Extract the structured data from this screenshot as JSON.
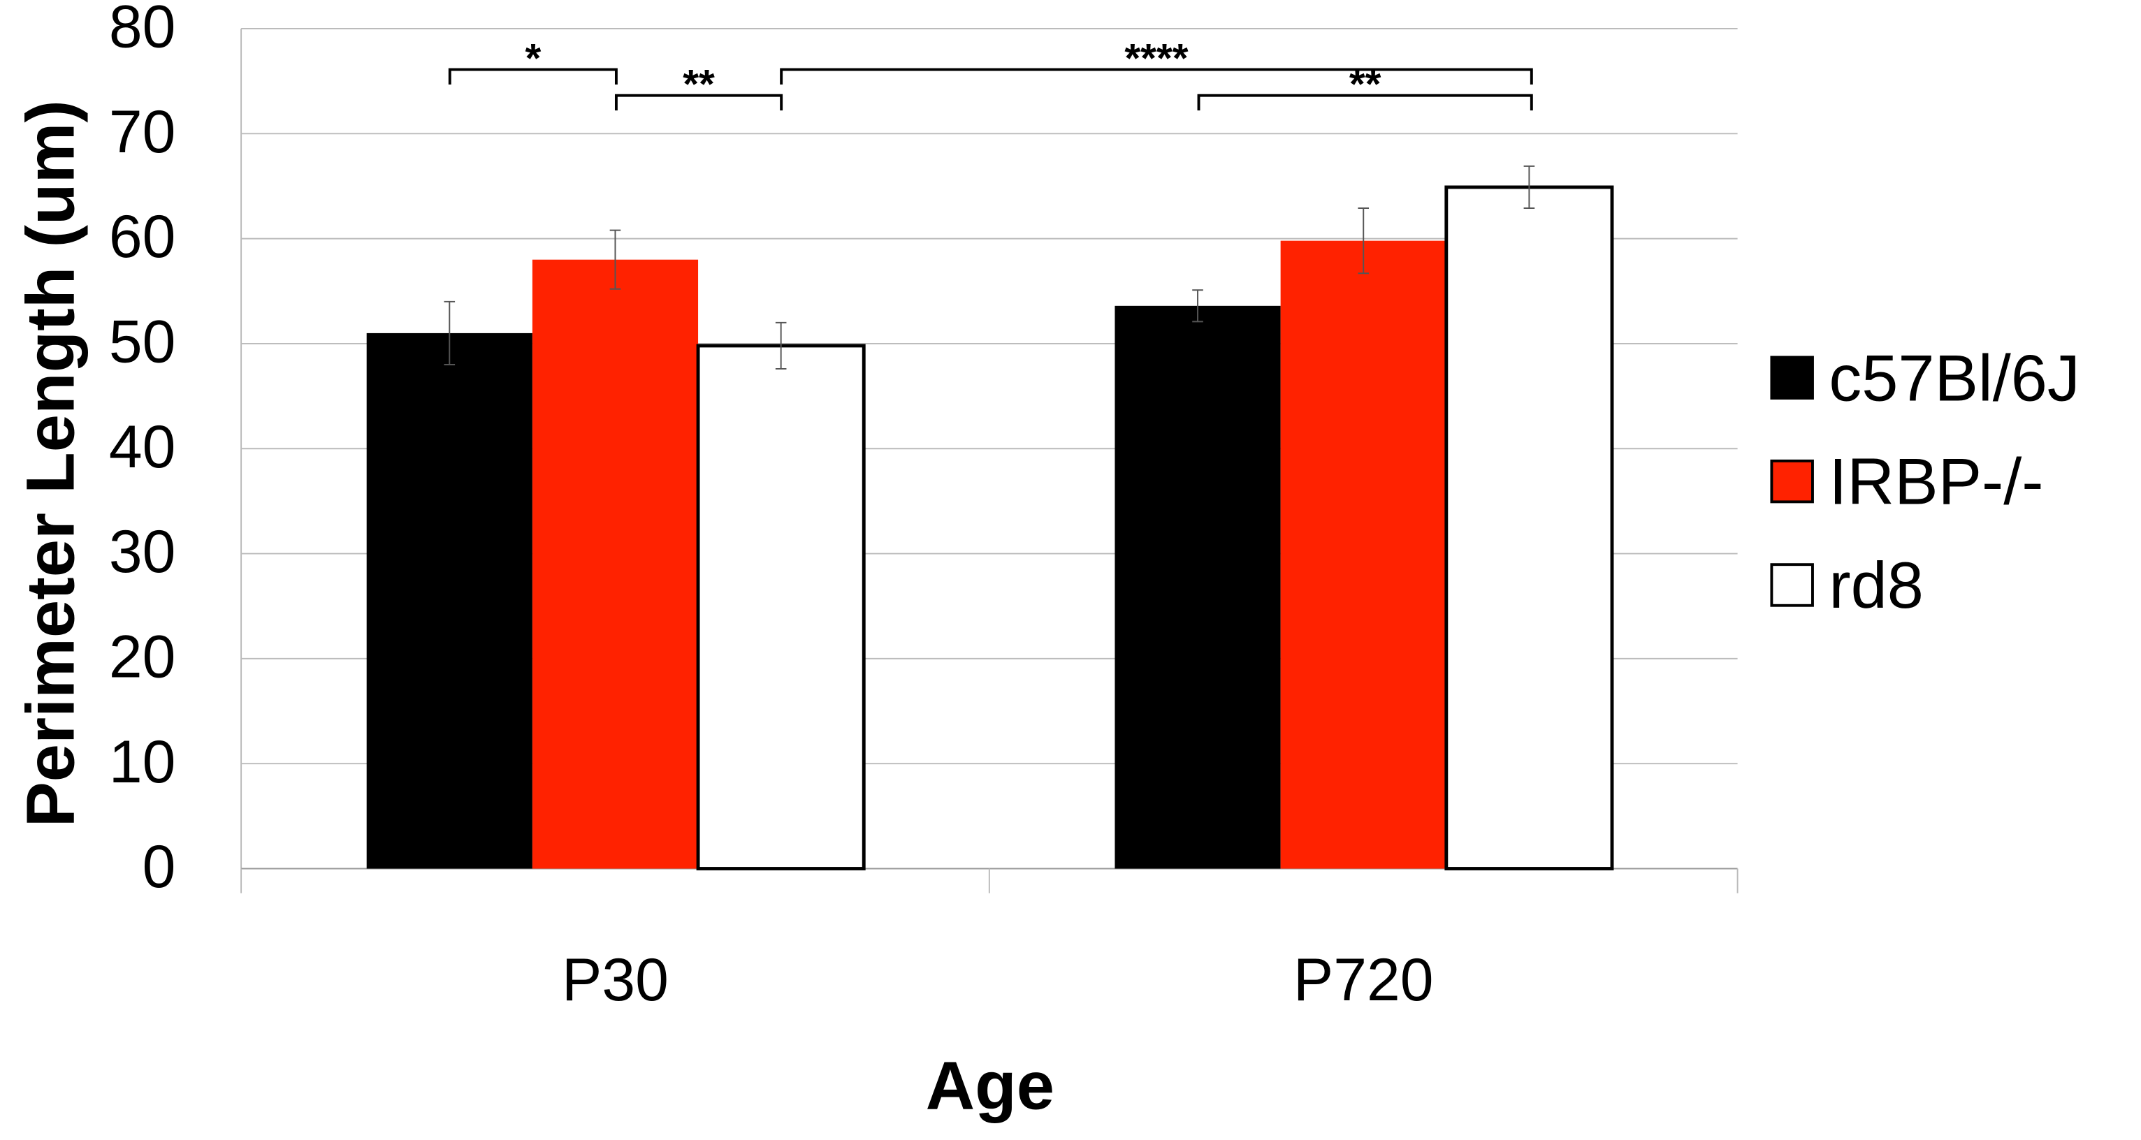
{
  "chart_data": {
    "type": "bar",
    "y_label": "Perimeter Length (um)",
    "x_label": "Age",
    "categories": [
      "P30",
      "P720"
    ],
    "series": [
      {
        "name": "c57Bl/6J",
        "color": "#000000",
        "values": [
          51,
          53.6
        ],
        "errors": [
          3,
          1.5
        ]
      },
      {
        "name": "IRBP-/-",
        "color": "#ff2200",
        "values": [
          58,
          59.8
        ],
        "errors": [
          2.8,
          3.1
        ]
      },
      {
        "name": "rd8",
        "color": "#ffffff",
        "values": [
          49.8,
          64.9
        ],
        "errors": [
          2.2,
          2
        ]
      }
    ],
    "ylim": [
      0,
      80
    ],
    "yticks": [
      0,
      10,
      20,
      30,
      40,
      50,
      60,
      70,
      80
    ],
    "grid": true,
    "annotations": [
      "*",
      "**",
      "****",
      "**"
    ]
  }
}
